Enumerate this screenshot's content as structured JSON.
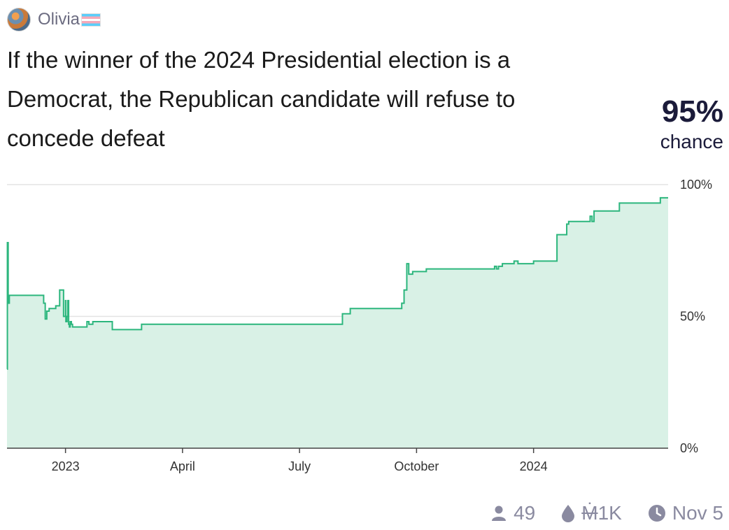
{
  "author": {
    "name": "Olivia",
    "flag": "transgender-flag"
  },
  "question": "If the winner of the 2024 Presidential election is a Democrat, the Republican candidate will refuse to concede defeat",
  "probability": {
    "value": "95%",
    "label": "chance"
  },
  "chart_data": {
    "type": "area",
    "step": true,
    "title": "",
    "xlabel": "",
    "ylabel": "",
    "ylim": [
      0,
      100
    ],
    "y_ticks": [
      "100%",
      "50%",
      "0%"
    ],
    "y_tick_values": [
      100,
      50,
      0
    ],
    "x_tick_labels": [
      "2023",
      "April",
      "July",
      "October",
      "2024"
    ],
    "x_tick_values": [
      1.5,
      4.5,
      7.5,
      10.5,
      13.5
    ],
    "x_unit": "months since Nov 2022",
    "series": [
      {
        "name": "probability",
        "color": "#2cb67d",
        "fill": "#d9f1e6",
        "x": [
          0.0,
          0.01,
          0.03,
          0.06,
          0.14,
          0.94,
          0.98,
          1.02,
          1.04,
          1.08,
          1.1,
          1.25,
          1.35,
          1.45,
          1.5,
          1.51,
          1.54,
          1.56,
          1.58,
          1.6,
          1.62,
          1.65,
          1.68,
          1.9,
          2.05,
          2.1,
          2.2,
          2.7,
          3.45,
          3.65,
          4.3,
          6.7,
          8.6,
          8.8,
          10.1,
          10.12,
          10.18,
          10.25,
          10.3,
          10.4,
          10.6,
          10.75,
          10.8,
          12.5,
          12.55,
          12.6,
          12.7,
          12.9,
          13.0,
          13.1,
          13.25,
          13.5,
          14.1,
          14.35,
          14.4,
          14.6,
          14.7,
          14.95,
          15.0,
          15.05,
          15.15,
          15.5,
          15.7,
          16.75
        ],
        "y": [
          30,
          78,
          55,
          58,
          58,
          55,
          49,
          52,
          52,
          53,
          53,
          54,
          60,
          50,
          56,
          48,
          50,
          56,
          47,
          46,
          48,
          47,
          46,
          46,
          48,
          47,
          48,
          45,
          47,
          47,
          47,
          47,
          51,
          53,
          53,
          55,
          60,
          70,
          66,
          67,
          67,
          68,
          68,
          69,
          68,
          69,
          70,
          70,
          71,
          70,
          70,
          71,
          81,
          85,
          86,
          86,
          86,
          88,
          86,
          90,
          90,
          90,
          93,
          95
        ]
      }
    ]
  },
  "stats": {
    "traders": "49",
    "volume": "1K",
    "volume_symbol": "Ṁ",
    "close_date": "Nov 5"
  },
  "colors": {
    "line": "#2cb67d",
    "area": "#d9f1e6",
    "grid": "#e3e3e3",
    "text_dark": "#1b1b3a",
    "muted": "#8a8aa0"
  }
}
